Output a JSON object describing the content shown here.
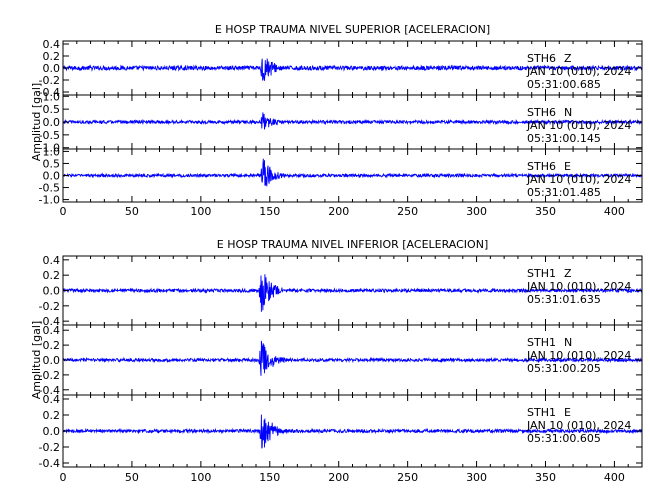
{
  "chart_data": [
    {
      "type": "line",
      "title": "E HOSP TRAUMA NIVEL SUPERIOR [ACELERACION]",
      "xlabel": "",
      "ylabel": "Amplitud [gal]",
      "xlim": [
        0,
        420
      ],
      "x_ticks": [
        "0",
        "50",
        "100",
        "150",
        "200",
        "250",
        "300",
        "350",
        "400"
      ],
      "line_color": "#0000ff",
      "grid": false,
      "panels": [
        {
          "station": "STH6",
          "component": "Z",
          "date": "JAN 10 (010), 2024",
          "time": "05:31:00.685",
          "ylim": [
            -0.45,
            0.45
          ],
          "y_ticks": [
            "0.4",
            "0.2",
            "0.0",
            "-0.2",
            "-0.4"
          ],
          "event_onset_x": 143,
          "peak_abs": 0.4,
          "noise_abs": 0.035
        },
        {
          "station": "STH6",
          "component": "N",
          "date": "JAN 10 (010), 2024",
          "time": "05:31:00.145",
          "ylim": [
            -1.05,
            1.05
          ],
          "y_ticks": [
            "1.0",
            "0.5",
            "0.0",
            "-0.5",
            "-1.0"
          ],
          "event_onset_x": 143,
          "peak_abs": 0.5,
          "noise_abs": 0.06
        },
        {
          "station": "STH6",
          "component": "E",
          "date": "JAN 10 (010), 2024",
          "time": "05:31:01.485",
          "ylim": [
            -1.1,
            1.1
          ],
          "y_ticks": [
            "1.0",
            "0.5",
            "0.0",
            "-0.5",
            "-1.0"
          ],
          "event_onset_x": 143,
          "peak_abs": 1.0,
          "noise_abs": 0.06
        }
      ]
    },
    {
      "type": "line",
      "title": "E HOSP TRAUMA NIVEL INFERIOR [ACELERACION]",
      "xlabel": "",
      "ylabel": "Amplitud [gal]",
      "xlim": [
        0,
        420
      ],
      "x_ticks": [
        "0",
        "50",
        "100",
        "150",
        "200",
        "250",
        "300",
        "350",
        "400"
      ],
      "line_color": "#0000ff",
      "grid": false,
      "panels": [
        {
          "station": "STH1",
          "component": "Z",
          "date": "JAN 10 (010), 2024",
          "time": "05:31:01.635",
          "ylim": [
            -0.45,
            0.45
          ],
          "y_ticks": [
            "0.4",
            "0.2",
            "0.0",
            "-0.2",
            "-0.4"
          ],
          "event_onset_x": 142,
          "peak_abs": 0.42,
          "noise_abs": 0.02
        },
        {
          "station": "STH1",
          "component": "N",
          "date": "JAN 10 (010), 2024",
          "time": "05:31:00.205",
          "ylim": [
            -0.47,
            0.47
          ],
          "y_ticks": [
            "0.4",
            "0.2",
            "0.0",
            "-0.2",
            "-0.4"
          ],
          "event_onset_x": 142,
          "peak_abs": 0.4,
          "noise_abs": 0.02
        },
        {
          "station": "STH1",
          "component": "E",
          "date": "JAN 10 (010), 2024",
          "time": "05:31:00.605",
          "ylim": [
            -0.45,
            0.45
          ],
          "y_ticks": [
            "0.4",
            "0.2",
            "0.0",
            "-0.2",
            "-0.4"
          ],
          "event_onset_x": 142,
          "peak_abs": 0.42,
          "noise_abs": 0.02
        }
      ]
    }
  ]
}
